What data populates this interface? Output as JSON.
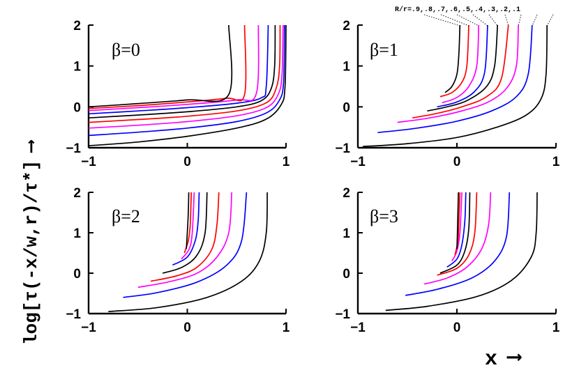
{
  "figure": {
    "ylabel": "log[τ(-x/w,r)/τ*]",
    "ylabel_arrow": "⟶",
    "xlabel": "x",
    "xlabel_arrow": "⟶",
    "r_label": "R/r=.9,.8,.7,.6,.5,.4,.3,.2,.1",
    "colors": {
      "black": "#000000",
      "red": "#ff0000",
      "magenta": "#ff00ff",
      "blue": "#0000ff"
    }
  },
  "chart_data": [
    {
      "type": "line",
      "panel_label": "β=0",
      "xlim": [
        -1,
        1
      ],
      "ylim": [
        -1,
        2
      ],
      "xticks": [
        "−1",
        "0",
        "1"
      ],
      "yticks": [
        "−1",
        "0",
        "1",
        "2"
      ],
      "series": [
        {
          "color": "#000000",
          "points": [
            [
              -1,
              -0.95
            ],
            [
              -0.5,
              -0.86
            ],
            [
              0,
              -0.72
            ],
            [
              0.5,
              -0.52
            ],
            [
              0.8,
              -0.3
            ],
            [
              0.95,
              0.05
            ],
            [
              0.99,
              0.5
            ],
            [
              1.0,
              2.0
            ]
          ]
        },
        {
          "color": "#0000ff",
          "points": [
            [
              -1,
              -0.7
            ],
            [
              -0.5,
              -0.62
            ],
            [
              0,
              -0.52
            ],
            [
              0.5,
              -0.36
            ],
            [
              0.8,
              -0.15
            ],
            [
              0.93,
              0.15
            ],
            [
              0.975,
              0.6
            ],
            [
              0.985,
              2.0
            ]
          ]
        },
        {
          "color": "#ff00ff",
          "points": [
            [
              -1,
              -0.52
            ],
            [
              -0.5,
              -0.45
            ],
            [
              0,
              -0.36
            ],
            [
              0.5,
              -0.22
            ],
            [
              0.8,
              -0.02
            ],
            [
              0.92,
              0.3
            ],
            [
              0.96,
              0.8
            ],
            [
              0.97,
              2.0
            ]
          ]
        },
        {
          "color": "#ff0000",
          "points": [
            [
              -1,
              -0.38
            ],
            [
              -0.5,
              -0.31
            ],
            [
              0,
              -0.23
            ],
            [
              0.5,
              -0.1
            ],
            [
              0.8,
              0.1
            ],
            [
              0.9,
              0.45
            ],
            [
              0.935,
              1.0
            ],
            [
              0.94,
              2.0
            ]
          ]
        },
        {
          "color": "#000000",
          "points": [
            [
              -1,
              -0.27
            ],
            [
              -0.5,
              -0.2
            ],
            [
              0,
              -0.12
            ],
            [
              0.5,
              0.0
            ],
            [
              0.75,
              0.15
            ],
            [
              0.85,
              0.45
            ],
            [
              0.885,
              1.0
            ],
            [
              0.89,
              2.0
            ]
          ]
        },
        {
          "color": "#0000ff",
          "points": [
            [
              -1,
              -0.17
            ],
            [
              -0.5,
              -0.1
            ],
            [
              0,
              -0.02
            ],
            [
              0.5,
              0.09
            ],
            [
              0.75,
              0.22
            ],
            [
              0.8,
              0.5
            ],
            [
              0.82,
              2.0
            ]
          ]
        },
        {
          "color": "#ff00ff",
          "points": [
            [
              -1,
              -0.09
            ],
            [
              -0.5,
              -0.02
            ],
            [
              0,
              0.06
            ],
            [
              0.5,
              0.17
            ],
            [
              0.7,
              0.33
            ],
            [
              0.72,
              2.0
            ]
          ]
        },
        {
          "color": "#ff0000",
          "points": [
            [
              -1,
              -0.04
            ],
            [
              -0.5,
              0.03
            ],
            [
              0,
              0.12
            ],
            [
              0.4,
              0.21
            ],
            [
              0.58,
              0.3
            ],
            [
              0.58,
              2.0
            ]
          ]
        },
        {
          "color": "#000000",
          "points": [
            [
              -1,
              0.0
            ],
            [
              -0.5,
              0.08
            ],
            [
              0,
              0.17
            ],
            [
              0.42,
              0.3
            ],
            [
              0.42,
              2.0
            ]
          ]
        }
      ]
    },
    {
      "type": "line",
      "panel_label": "β=1",
      "xlim": [
        -1,
        1
      ],
      "ylim": [
        -1,
        2
      ],
      "xticks": [
        "−1",
        "0",
        "1"
      ],
      "yticks": [
        "−1",
        "0",
        "1",
        "2"
      ],
      "series": [
        {
          "color": "#000000",
          "points": [
            [
              -0.95,
              -0.97
            ],
            [
              -0.5,
              -0.9
            ],
            [
              0,
              -0.75
            ],
            [
              0.4,
              -0.5
            ],
            [
              0.7,
              -0.2
            ],
            [
              0.85,
              0.2
            ],
            [
              0.9,
              0.8
            ],
            [
              0.91,
              2.0
            ]
          ]
        },
        {
          "color": "#0000ff",
          "points": [
            [
              -0.8,
              -0.63
            ],
            [
              -0.4,
              -0.52
            ],
            [
              0,
              -0.35
            ],
            [
              0.35,
              -0.1
            ],
            [
              0.6,
              0.25
            ],
            [
              0.72,
              0.8
            ],
            [
              0.76,
              2.0
            ]
          ]
        },
        {
          "color": "#ff00ff",
          "points": [
            [
              -0.6,
              -0.38
            ],
            [
              -0.3,
              -0.28
            ],
            [
              0,
              -0.13
            ],
            [
              0.3,
              0.1
            ],
            [
              0.5,
              0.45
            ],
            [
              0.6,
              1.0
            ],
            [
              0.62,
              2.0
            ]
          ]
        },
        {
          "color": "#ff0000",
          "points": [
            [
              -0.45,
              -0.27
            ],
            [
              -0.2,
              -0.16
            ],
            [
              0.05,
              0.0
            ],
            [
              0.3,
              0.25
            ],
            [
              0.45,
              0.7
            ],
            [
              0.52,
              2.0
            ]
          ]
        },
        {
          "color": "#000000",
          "points": [
            [
              -0.3,
              -0.1
            ],
            [
              -0.1,
              0.0
            ],
            [
              0.1,
              0.15
            ],
            [
              0.3,
              0.5
            ],
            [
              0.38,
              1.0
            ],
            [
              0.41,
              2.0
            ]
          ]
        },
        {
          "color": "#0000ff",
          "points": [
            [
              -0.2,
              0.0
            ],
            [
              0.0,
              0.12
            ],
            [
              0.18,
              0.38
            ],
            [
              0.28,
              0.85
            ],
            [
              0.31,
              2.0
            ]
          ]
        },
        {
          "color": "#ff00ff",
          "points": [
            [
              -0.15,
              0.1
            ],
            [
              0.0,
              0.23
            ],
            [
              0.12,
              0.5
            ],
            [
              0.2,
              1.0
            ],
            [
              0.22,
              2.0
            ]
          ]
        },
        {
          "color": "#ff0000",
          "points": [
            [
              -0.17,
              0.25
            ],
            [
              -0.05,
              0.35
            ],
            [
              0.05,
              0.6
            ],
            [
              0.1,
              1.0
            ],
            [
              0.12,
              2.0
            ]
          ]
        },
        {
          "color": "#000000",
          "points": [
            [
              -0.12,
              0.35
            ],
            [
              -0.05,
              0.5
            ],
            [
              0.0,
              0.8
            ],
            [
              0.02,
              1.3
            ],
            [
              0.03,
              2.0
            ]
          ]
        }
      ]
    },
    {
      "type": "line",
      "panel_label": "β=2",
      "xlim": [
        -1,
        1
      ],
      "ylim": [
        -1,
        2
      ],
      "xticks": [
        "−1",
        "0",
        "1"
      ],
      "yticks": [
        "−1",
        "0",
        "1",
        "2"
      ],
      "series": [
        {
          "color": "#000000",
          "points": [
            [
              -0.8,
              -0.95
            ],
            [
              -0.3,
              -0.85
            ],
            [
              0.2,
              -0.6
            ],
            [
              0.55,
              -0.2
            ],
            [
              0.73,
              0.3
            ],
            [
              0.8,
              1.0
            ],
            [
              0.81,
              2.0
            ]
          ]
        },
        {
          "color": "#0000ff",
          "points": [
            [
              -0.65,
              -0.6
            ],
            [
              -0.3,
              -0.48
            ],
            [
              0.1,
              -0.22
            ],
            [
              0.4,
              0.2
            ],
            [
              0.55,
              0.8
            ],
            [
              0.6,
              2.0
            ]
          ]
        },
        {
          "color": "#ff00ff",
          "points": [
            [
              -0.5,
              -0.35
            ],
            [
              -0.2,
              -0.22
            ],
            [
              0.1,
              0.0
            ],
            [
              0.3,
              0.4
            ],
            [
              0.42,
              1.0
            ],
            [
              0.45,
              2.0
            ]
          ]
        },
        {
          "color": "#ff0000",
          "points": [
            [
              -0.37,
              -0.2
            ],
            [
              -0.1,
              -0.06
            ],
            [
              0.1,
              0.15
            ],
            [
              0.25,
              0.6
            ],
            [
              0.3,
              1.2
            ],
            [
              0.32,
              2.0
            ]
          ]
        },
        {
          "color": "#000000",
          "points": [
            [
              -0.25,
              0.0
            ],
            [
              -0.05,
              0.15
            ],
            [
              0.1,
              0.45
            ],
            [
              0.18,
              1.0
            ],
            [
              0.2,
              2.0
            ]
          ]
        },
        {
          "color": "#0000ff",
          "points": [
            [
              -0.15,
              0.2
            ],
            [
              0.0,
              0.4
            ],
            [
              0.08,
              0.8
            ],
            [
              0.11,
              1.3
            ],
            [
              0.12,
              2.0
            ]
          ]
        },
        {
          "color": "#ff00ff",
          "points": [
            [
              -0.06,
              0.35
            ],
            [
              0.02,
              0.6
            ],
            [
              0.05,
              1.0
            ],
            [
              0.07,
              2.0
            ]
          ]
        },
        {
          "color": "#ff0000",
          "points": [
            [
              -0.03,
              0.5
            ],
            [
              0.01,
              0.8
            ],
            [
              0.03,
              1.2
            ],
            [
              0.04,
              2.0
            ]
          ]
        },
        {
          "color": "#000000",
          "points": [
            [
              -0.01,
              0.6
            ],
            [
              0.0,
              1.0
            ],
            [
              0.01,
              1.5
            ],
            [
              0.015,
              2.0
            ]
          ]
        }
      ]
    },
    {
      "type": "line",
      "panel_label": "β=3",
      "xlim": [
        -1,
        1
      ],
      "ylim": [
        -1,
        2
      ],
      "xticks": [
        "−1",
        "0",
        "1"
      ],
      "yticks": [
        "−1",
        "0",
        "1",
        "2"
      ],
      "series": [
        {
          "color": "#000000",
          "points": [
            [
              -0.72,
              -0.92
            ],
            [
              -0.3,
              -0.82
            ],
            [
              0.2,
              -0.58
            ],
            [
              0.55,
              -0.18
            ],
            [
              0.75,
              0.4
            ],
            [
              0.8,
              1.0
            ],
            [
              0.81,
              2.0
            ]
          ]
        },
        {
          "color": "#0000ff",
          "points": [
            [
              -0.52,
              -0.55
            ],
            [
              -0.2,
              -0.4
            ],
            [
              0.15,
              -0.12
            ],
            [
              0.38,
              0.3
            ],
            [
              0.5,
              0.9
            ],
            [
              0.53,
              2.0
            ]
          ]
        },
        {
          "color": "#ff00ff",
          "points": [
            [
              -0.33,
              -0.27
            ],
            [
              -0.1,
              -0.12
            ],
            [
              0.1,
              0.15
            ],
            [
              0.25,
              0.6
            ],
            [
              0.32,
              1.2
            ],
            [
              0.34,
              2.0
            ]
          ]
        },
        {
          "color": "#ff0000",
          "points": [
            [
              -0.2,
              -0.05
            ],
            [
              0.0,
              0.12
            ],
            [
              0.12,
              0.45
            ],
            [
              0.18,
              1.0
            ],
            [
              0.2,
              2.0
            ]
          ]
        },
        {
          "color": "#000000",
          "points": [
            [
              -0.17,
              0.0
            ],
            [
              0.0,
              0.2
            ],
            [
              0.08,
              0.55
            ],
            [
              0.12,
              1.1
            ],
            [
              0.13,
              2.0
            ]
          ]
        },
        {
          "color": "#0000ff",
          "points": [
            [
              -0.1,
              0.15
            ],
            [
              0.0,
              0.35
            ],
            [
              0.05,
              0.7
            ],
            [
              0.08,
              1.3
            ],
            [
              0.09,
              2.0
            ]
          ]
        },
        {
          "color": "#ff00ff",
          "points": [
            [
              -0.05,
              0.3
            ],
            [
              0.0,
              0.55
            ],
            [
              0.03,
              1.0
            ],
            [
              0.05,
              2.0
            ]
          ]
        },
        {
          "color": "#ff0000",
          "points": [
            [
              -0.02,
              0.45
            ],
            [
              0.01,
              0.8
            ],
            [
              0.02,
              1.3
            ],
            [
              0.03,
              2.0
            ]
          ]
        },
        {
          "color": "#000000",
          "points": [
            [
              0.0,
              0.6
            ],
            [
              0.005,
              1.0
            ],
            [
              0.01,
              1.5
            ],
            [
              0.015,
              2.0
            ]
          ]
        }
      ]
    }
  ]
}
